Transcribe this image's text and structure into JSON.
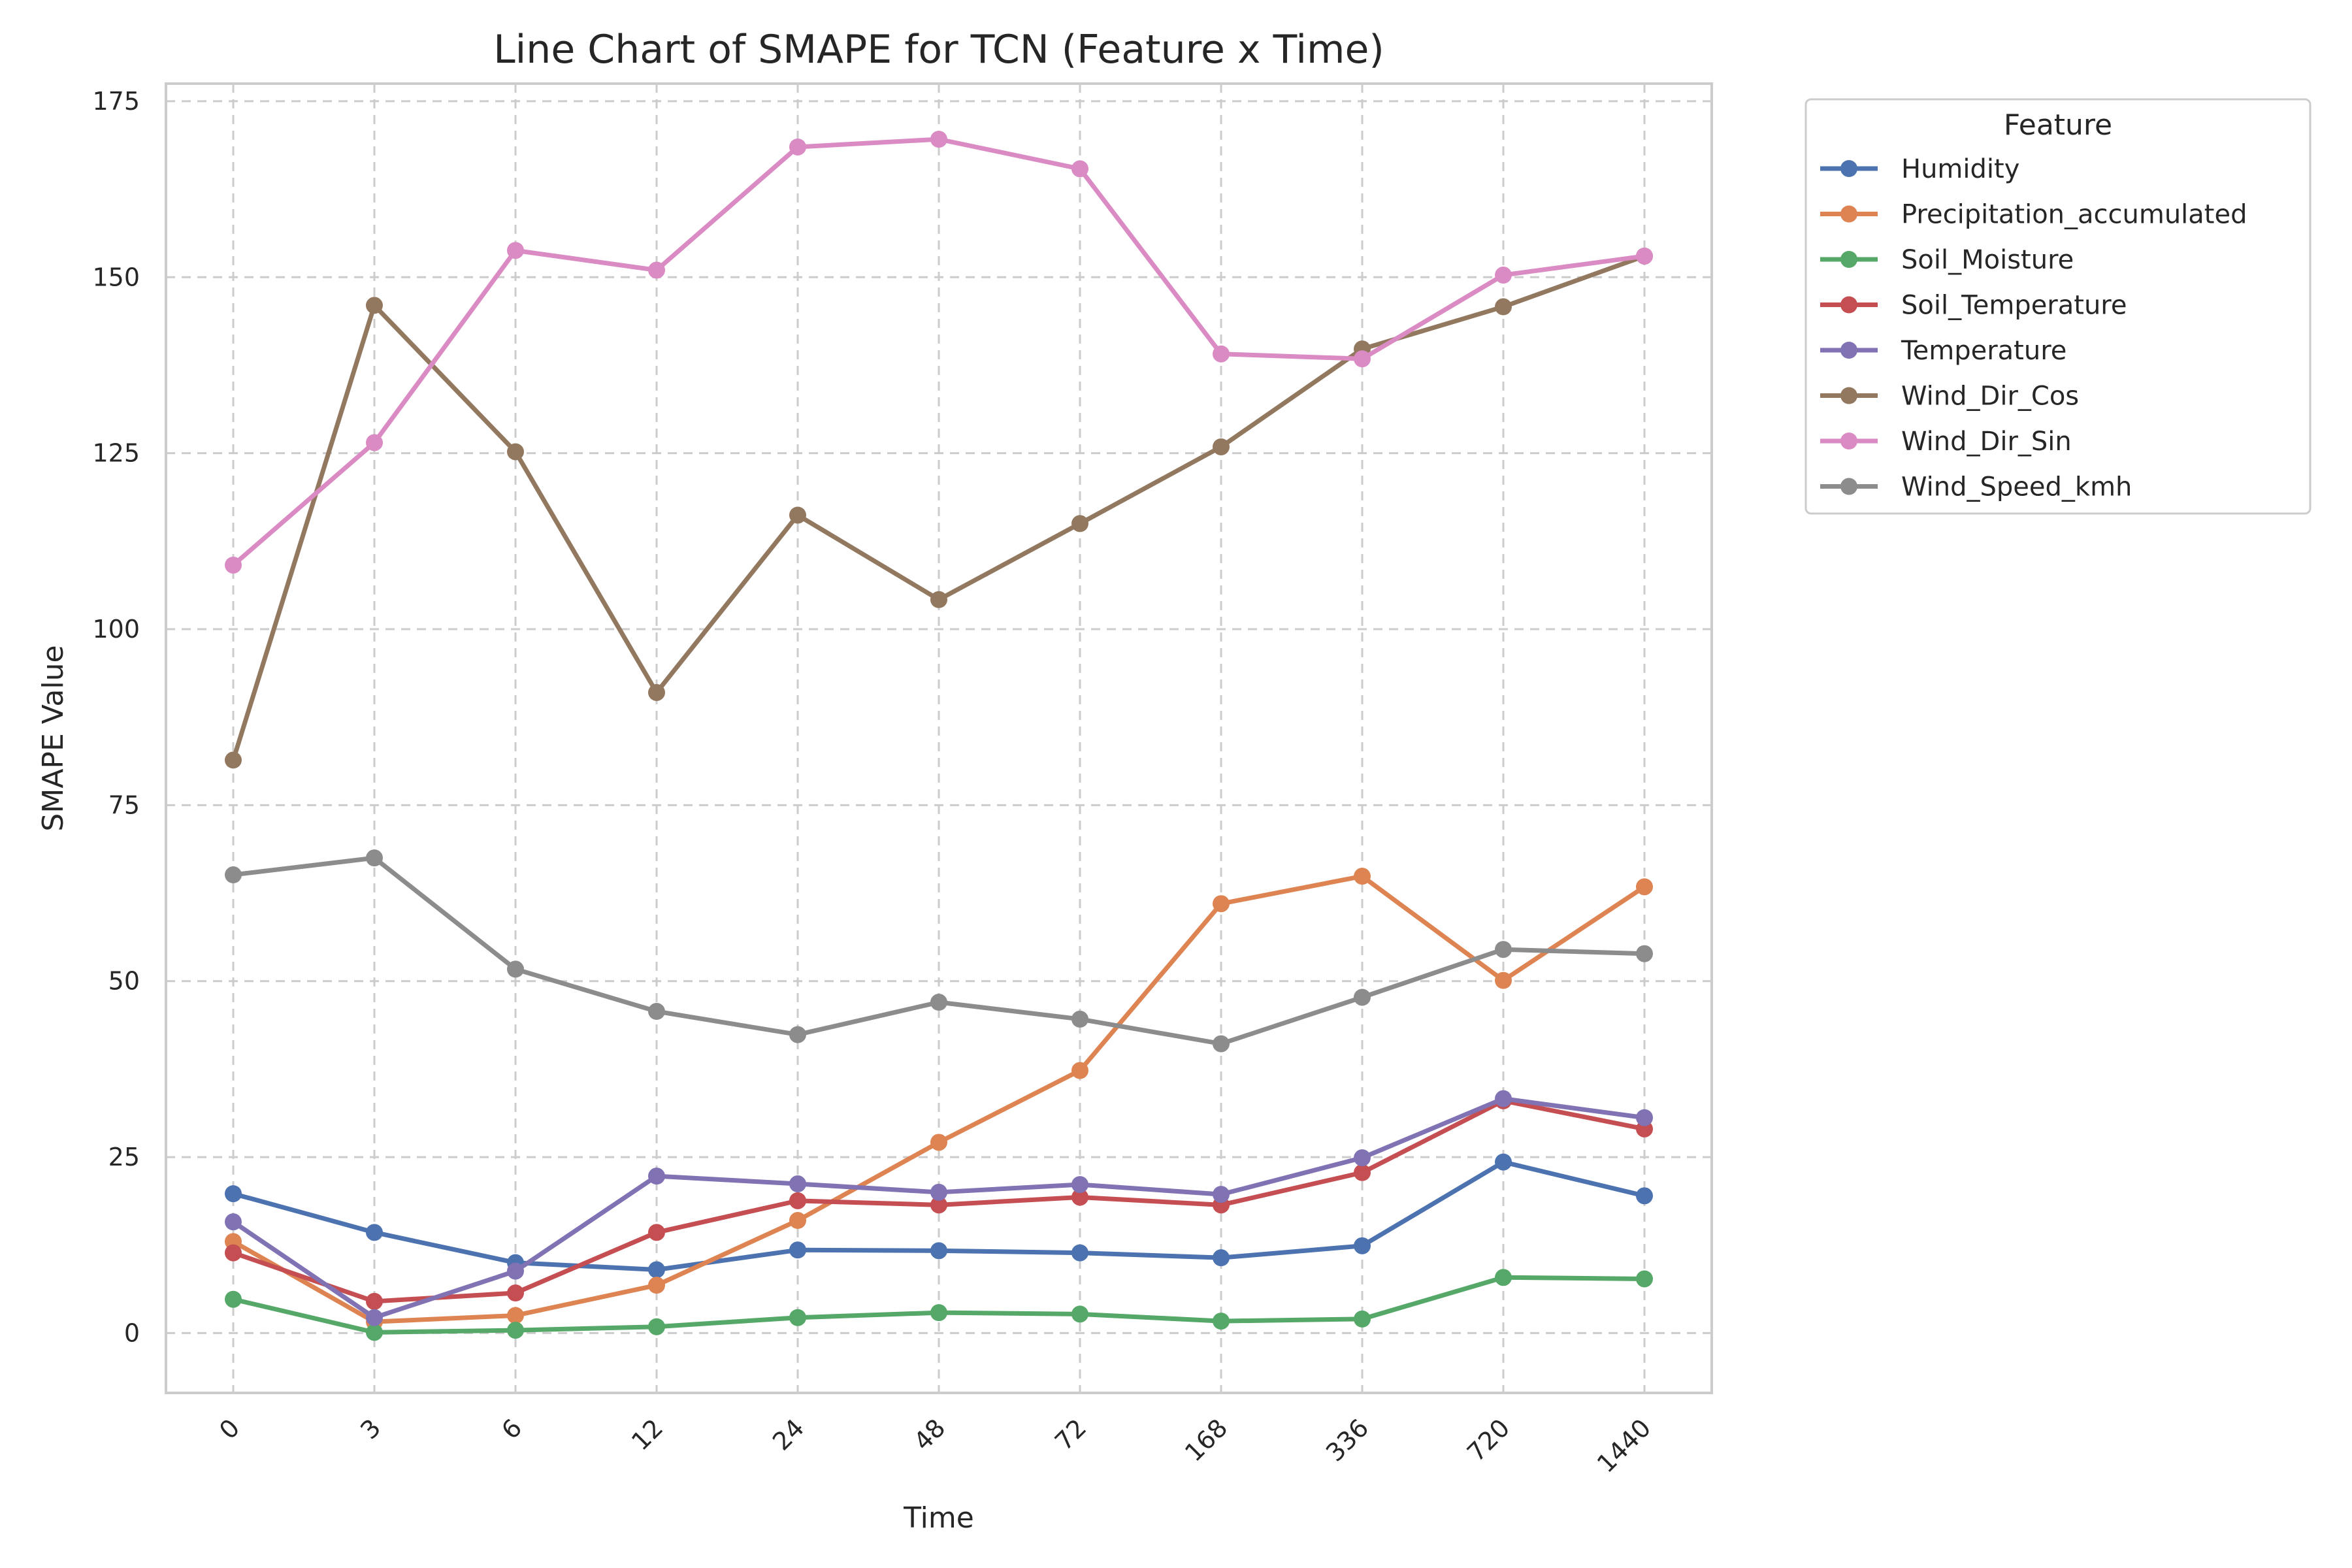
{
  "chart_data": {
    "type": "line",
    "title": "Line Chart of SMAPE for TCN (Feature x Time)",
    "xlabel": "Time",
    "ylabel": "SMAPE Value",
    "categories": [
      "0",
      "3",
      "6",
      "12",
      "24",
      "48",
      "72",
      "168",
      "336",
      "720",
      "1440"
    ],
    "ylim": [
      -8.5,
      177.5
    ],
    "yticks": [
      0,
      25,
      50,
      75,
      100,
      125,
      150,
      175
    ],
    "grid": true,
    "legend": {
      "title": "Feature",
      "placement": "outside-top-right"
    },
    "series": [
      {
        "name": "Humidity",
        "color": "#4c72b0",
        "values": [
          19.8,
          14.3,
          10.0,
          9.0,
          11.8,
          11.7,
          11.4,
          10.7,
          12.4,
          24.3,
          19.5
        ]
      },
      {
        "name": "Precipitation_accumulated",
        "color": "#dd8452",
        "values": [
          13.0,
          1.6,
          2.5,
          6.8,
          16.0,
          27.1,
          37.3,
          61.0,
          64.9,
          50.1,
          63.4
        ]
      },
      {
        "name": "Soil_Moisture",
        "color": "#55a868",
        "values": [
          4.8,
          0.1,
          0.4,
          0.9,
          2.2,
          2.9,
          2.7,
          1.7,
          2.0,
          7.9,
          7.7
        ]
      },
      {
        "name": "Soil_Temperature",
        "color": "#c44e52",
        "values": [
          11.4,
          4.5,
          5.7,
          14.3,
          18.8,
          18.2,
          19.3,
          18.2,
          22.8,
          33.0,
          29.0
        ]
      },
      {
        "name": "Temperature",
        "color": "#8172b3",
        "values": [
          15.8,
          2.2,
          8.8,
          22.3,
          21.2,
          20.0,
          21.1,
          19.7,
          24.9,
          33.3,
          30.6
        ]
      },
      {
        "name": "Wind_Dir_Cos",
        "color": "#937860",
        "values": [
          81.4,
          146.0,
          125.2,
          91.0,
          116.2,
          104.2,
          115.0,
          125.9,
          139.8,
          145.8,
          153.0
        ]
      },
      {
        "name": "Wind_Dir_Sin",
        "color": "#da8bc3",
        "values": [
          109.1,
          126.5,
          153.8,
          151.0,
          168.5,
          169.6,
          165.4,
          139.1,
          138.4,
          150.3,
          153.0
        ]
      },
      {
        "name": "Wind_Speed_kmh",
        "color": "#8c8c8c",
        "values": [
          65.1,
          67.5,
          51.7,
          45.7,
          42.4,
          47.0,
          44.6,
          41.1,
          47.7,
          54.5,
          53.9
        ]
      }
    ]
  }
}
